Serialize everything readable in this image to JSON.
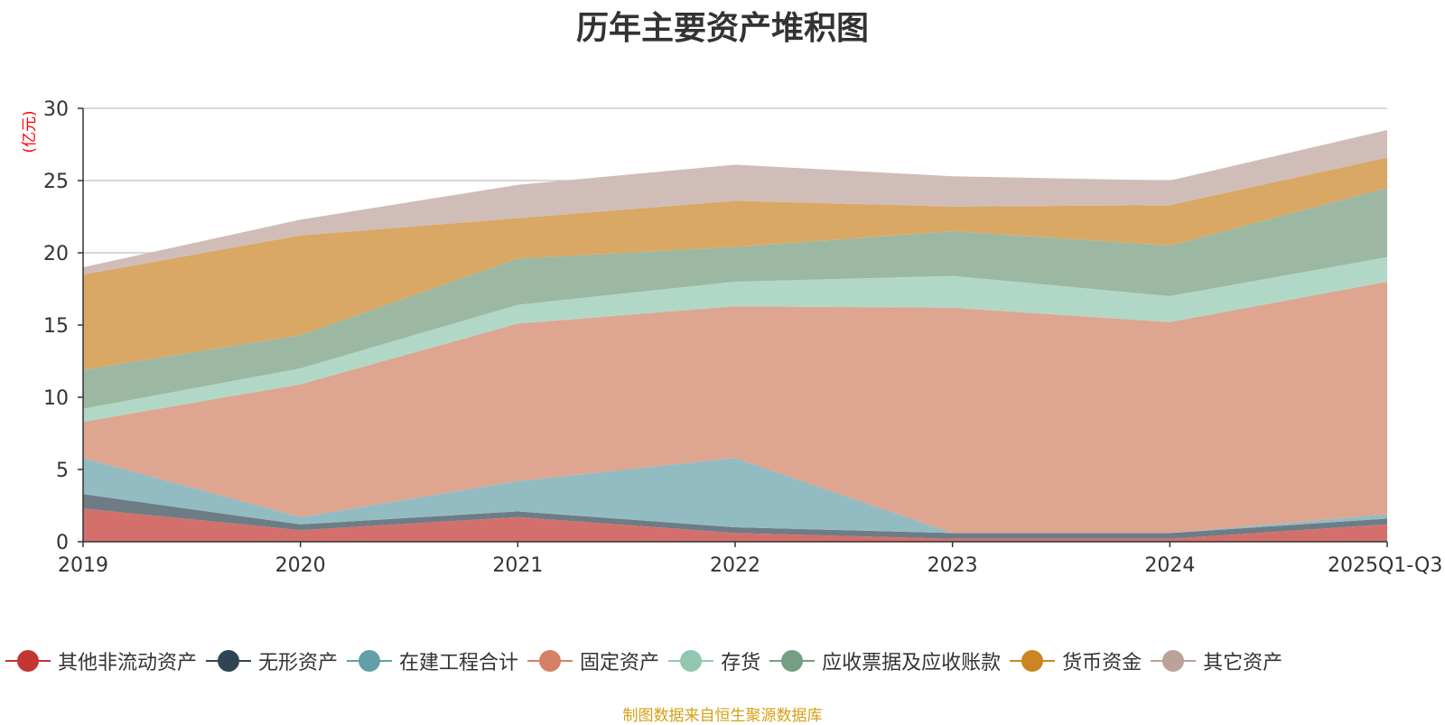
{
  "chart_data": {
    "type": "area",
    "stacked": true,
    "title": "历年主要资产堆积图",
    "unit_label": "(亿元)",
    "source_note": "制图数据来自恒生聚源数据库",
    "categories": [
      "2019",
      "2020",
      "2021",
      "2022",
      "2023",
      "2024",
      "2025Q1-Q3"
    ],
    "ylim": [
      0,
      30
    ],
    "yticks": [
      0,
      5,
      10,
      15,
      20,
      25,
      30
    ],
    "grid": true,
    "legend_position": "bottom",
    "series": [
      {
        "name": "其他非流动资产",
        "color": "#c23531",
        "fill": "#d4706b",
        "values": [
          2.3,
          0.8,
          1.7,
          0.6,
          0.2,
          0.2,
          1.2
        ]
      },
      {
        "name": "无形资产",
        "color": "#2f4554",
        "fill": "#6e7c86",
        "values": [
          1.0,
          0.4,
          0.4,
          0.4,
          0.4,
          0.4,
          0.4
        ]
      },
      {
        "name": "在建工程合计",
        "color": "#61a0a8",
        "fill": "#92bcc1",
        "values": [
          2.5,
          0.5,
          2.1,
          4.8,
          0.0,
          0.0,
          0.3
        ]
      },
      {
        "name": "固定资产",
        "color": "#d48265",
        "fill": "#dea591",
        "values": [
          2.5,
          9.2,
          10.9,
          10.5,
          15.6,
          14.6,
          16.1
        ]
      },
      {
        "name": "存货",
        "color": "#91c7ae",
        "fill": "#b1d8c6",
        "values": [
          0.9,
          1.1,
          1.3,
          1.7,
          2.2,
          1.8,
          1.7
        ]
      },
      {
        "name": "应收票据及应收账款",
        "color": "#749f83",
        "fill": "#9cb8a3",
        "values": [
          2.7,
          2.3,
          3.2,
          2.4,
          3.1,
          3.5,
          4.8
        ]
      },
      {
        "name": "货币资金",
        "color": "#ca8622",
        "fill": "#d9a864",
        "values": [
          6.6,
          6.9,
          2.8,
          3.2,
          1.7,
          2.8,
          2.1
        ]
      },
      {
        "name": "其它资产",
        "color": "#bda29a",
        "fill": "#d0bdb7",
        "values": [
          0.5,
          1.1,
          2.3,
          2.5,
          2.1,
          1.7,
          1.9
        ]
      }
    ]
  }
}
